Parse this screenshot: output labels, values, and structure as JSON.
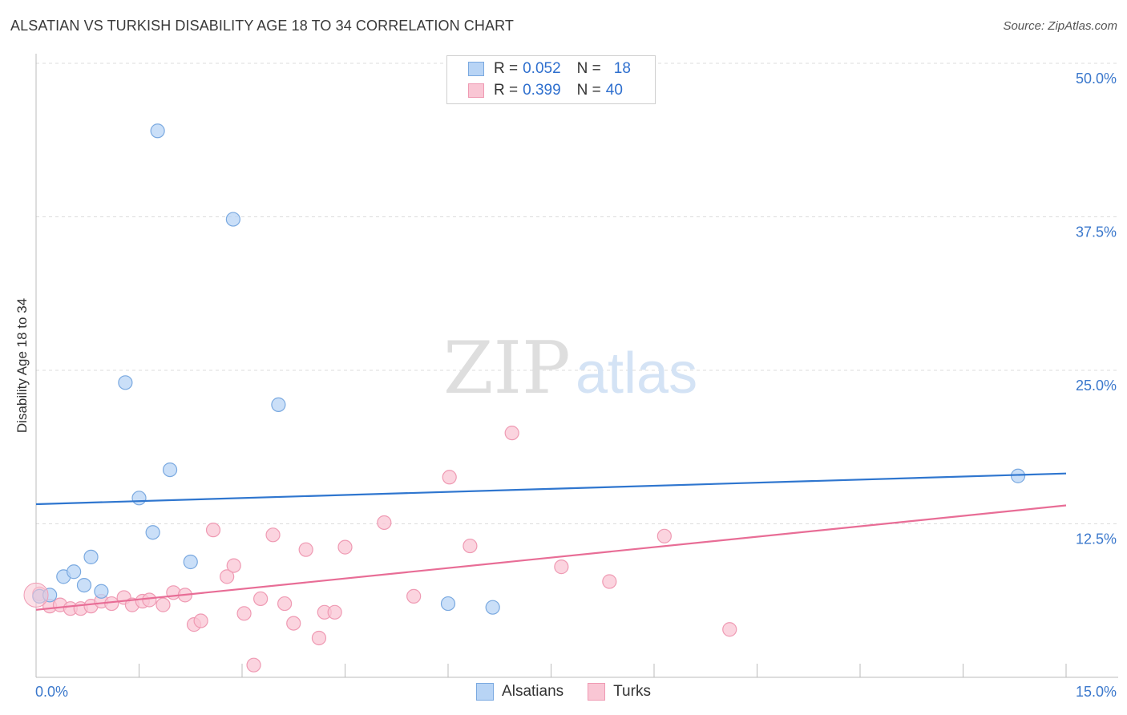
{
  "title": "ALSATIAN VS TURKISH DISABILITY AGE 18 TO 34 CORRELATION CHART",
  "source": "Source: ZipAtlas.com",
  "colors": {
    "alsatians_fill": "#b8d4f5",
    "alsatians_stroke": "#7aa9e0",
    "alsatians_line": "#2f76cf",
    "turks_fill": "#f9c6d4",
    "turks_stroke": "#ef9ab3",
    "turks_line": "#e86d96",
    "axis_label": "#3b78cc"
  },
  "legend": {
    "rows": [
      {
        "r_label": "R =",
        "r_value": "0.052",
        "n_label": "N =",
        "n_value": "18"
      },
      {
        "r_label": "R =",
        "r_value": "0.399",
        "n_label": "N =",
        "n_value": "40"
      }
    ],
    "bottom": [
      "Alsatians",
      "Turks"
    ]
  },
  "chart_data": {
    "type": "scatter",
    "title": "ALSATIAN VS TURKISH DISABILITY AGE 18 TO 34 CORRELATION CHART",
    "xlabel": "",
    "ylabel": "Disability Age 18 to 34",
    "xlim": [
      0,
      15
    ],
    "ylim": [
      0,
      50
    ],
    "x_tick_labels": [
      "0.0%",
      "15.0%"
    ],
    "y_tick_labels": [
      "12.5%",
      "25.0%",
      "37.5%",
      "50.0%"
    ],
    "y_ticks": [
      12.5,
      25.0,
      37.5,
      50.0
    ],
    "watermark": {
      "zip": "ZIP",
      "atlas": "atlas"
    },
    "series": [
      {
        "name": "Alsatians",
        "r": 0.052,
        "n": 18,
        "points": [
          [
            0.05,
            6.6
          ],
          [
            0.2,
            6.7
          ],
          [
            0.4,
            8.2
          ],
          [
            0.55,
            8.6
          ],
          [
            0.7,
            7.5
          ],
          [
            0.8,
            9.8
          ],
          [
            0.95,
            7.0
          ],
          [
            1.3,
            24.0
          ],
          [
            1.5,
            14.6
          ],
          [
            1.7,
            11.8
          ],
          [
            1.77,
            44.5
          ],
          [
            1.95,
            16.9
          ],
          [
            2.25,
            9.4
          ],
          [
            2.87,
            37.3
          ],
          [
            3.53,
            22.2
          ],
          [
            6.0,
            6.0
          ],
          [
            6.65,
            5.7
          ],
          [
            14.3,
            16.4
          ]
        ],
        "trend": [
          [
            0,
            14.1
          ],
          [
            15,
            16.6
          ]
        ]
      },
      {
        "name": "Turks",
        "r": 0.399,
        "n": 40,
        "points": [
          [
            0.05,
            6.8
          ],
          [
            0.2,
            5.8
          ],
          [
            0.35,
            5.9
          ],
          [
            0.5,
            5.6
          ],
          [
            0.65,
            5.6
          ],
          [
            0.8,
            5.8
          ],
          [
            0.95,
            6.2
          ],
          [
            1.1,
            6.0
          ],
          [
            1.28,
            6.5
          ],
          [
            1.4,
            5.9
          ],
          [
            1.55,
            6.2
          ],
          [
            1.65,
            6.3
          ],
          [
            1.85,
            5.9
          ],
          [
            2.0,
            6.9
          ],
          [
            2.17,
            6.7
          ],
          [
            2.3,
            4.3
          ],
          [
            2.4,
            4.6
          ],
          [
            2.58,
            12.0
          ],
          [
            2.78,
            8.2
          ],
          [
            2.88,
            9.1
          ],
          [
            3.03,
            5.2
          ],
          [
            3.17,
            1.0
          ],
          [
            3.27,
            6.4
          ],
          [
            3.45,
            11.6
          ],
          [
            3.62,
            6.0
          ],
          [
            3.75,
            4.4
          ],
          [
            3.93,
            10.4
          ],
          [
            4.12,
            3.2
          ],
          [
            4.2,
            5.3
          ],
          [
            4.35,
            5.3
          ],
          [
            4.5,
            10.6
          ],
          [
            5.07,
            12.6
          ],
          [
            5.5,
            6.6
          ],
          [
            6.02,
            16.3
          ],
          [
            6.32,
            10.7
          ],
          [
            6.93,
            19.9
          ],
          [
            7.65,
            9.0
          ],
          [
            8.35,
            7.8
          ],
          [
            9.15,
            11.5
          ],
          [
            10.1,
            3.9
          ]
        ],
        "trend": [
          [
            0,
            5.5
          ],
          [
            15,
            14.0
          ]
        ]
      }
    ]
  }
}
